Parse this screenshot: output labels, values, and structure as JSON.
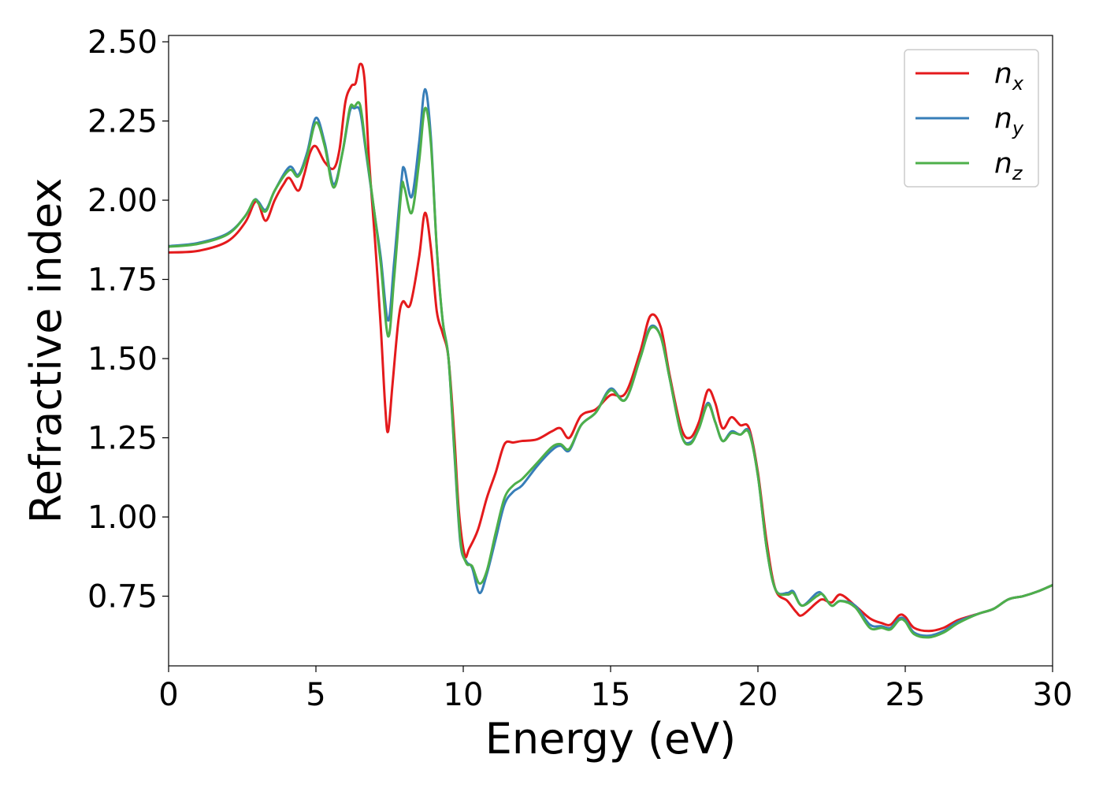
{
  "chart_data": {
    "type": "line",
    "xlabel": "Energy (eV)",
    "ylabel": "Refractive index",
    "xlim": [
      0,
      30
    ],
    "ylim": [
      0.53,
      2.52
    ],
    "xticks": [
      0,
      5,
      10,
      15,
      20,
      25,
      30
    ],
    "xtick_labels": [
      "0",
      "5",
      "10",
      "15",
      "20",
      "25",
      "30"
    ],
    "yticks": [
      0.75,
      1.0,
      1.25,
      1.5,
      1.75,
      2.0,
      2.25,
      2.5
    ],
    "ytick_labels": [
      "0.75",
      "1.00",
      "1.25",
      "1.50",
      "1.75",
      "2.00",
      "2.25",
      "2.50"
    ],
    "grid": false,
    "legend_position": "top-right",
    "series": [
      {
        "name": "n_x",
        "label_base": "n",
        "label_sub": "x",
        "color": "#e41a1c",
        "points": [
          [
            0,
            1.835
          ],
          [
            1,
            1.84
          ],
          [
            2,
            1.87
          ],
          [
            2.6,
            1.93
          ],
          [
            2.9,
            1.99
          ],
          [
            3.05,
            1.99
          ],
          [
            3.3,
            1.935
          ],
          [
            3.6,
            2.0
          ],
          [
            3.9,
            2.05
          ],
          [
            4.1,
            2.07
          ],
          [
            4.4,
            2.03
          ],
          [
            4.6,
            2.08
          ],
          [
            4.8,
            2.15
          ],
          [
            5.0,
            2.17
          ],
          [
            5.3,
            2.12
          ],
          [
            5.6,
            2.1
          ],
          [
            5.8,
            2.16
          ],
          [
            6.0,
            2.31
          ],
          [
            6.2,
            2.36
          ],
          [
            6.35,
            2.37
          ],
          [
            6.5,
            2.43
          ],
          [
            6.65,
            2.38
          ],
          [
            6.8,
            2.13
          ],
          [
            7.0,
            1.88
          ],
          [
            7.2,
            1.6
          ],
          [
            7.35,
            1.35
          ],
          [
            7.45,
            1.27
          ],
          [
            7.6,
            1.42
          ],
          [
            7.8,
            1.62
          ],
          [
            7.95,
            1.68
          ],
          [
            8.2,
            1.67
          ],
          [
            8.5,
            1.82
          ],
          [
            8.7,
            1.96
          ],
          [
            8.9,
            1.85
          ],
          [
            9.1,
            1.65
          ],
          [
            9.3,
            1.58
          ],
          [
            9.5,
            1.5
          ],
          [
            9.7,
            1.25
          ],
          [
            9.85,
            1.02
          ],
          [
            10.05,
            0.88
          ],
          [
            10.2,
            0.9
          ],
          [
            10.5,
            0.96
          ],
          [
            10.8,
            1.06
          ],
          [
            11.1,
            1.14
          ],
          [
            11.4,
            1.23
          ],
          [
            11.7,
            1.235
          ],
          [
            12.0,
            1.24
          ],
          [
            12.5,
            1.245
          ],
          [
            13.0,
            1.27
          ],
          [
            13.3,
            1.28
          ],
          [
            13.6,
            1.25
          ],
          [
            14.0,
            1.32
          ],
          [
            14.5,
            1.34
          ],
          [
            15.0,
            1.385
          ],
          [
            15.5,
            1.39
          ],
          [
            16.0,
            1.52
          ],
          [
            16.35,
            1.635
          ],
          [
            16.7,
            1.6
          ],
          [
            17.0,
            1.45
          ],
          [
            17.4,
            1.28
          ],
          [
            17.7,
            1.25
          ],
          [
            18.0,
            1.3
          ],
          [
            18.3,
            1.4
          ],
          [
            18.55,
            1.36
          ],
          [
            18.8,
            1.28
          ],
          [
            19.1,
            1.315
          ],
          [
            19.4,
            1.29
          ],
          [
            19.7,
            1.28
          ],
          [
            20.0,
            1.14
          ],
          [
            20.3,
            0.92
          ],
          [
            20.6,
            0.77
          ],
          [
            21.0,
            0.735
          ],
          [
            21.3,
            0.7
          ],
          [
            21.5,
            0.69
          ],
          [
            22.0,
            0.73
          ],
          [
            22.2,
            0.74
          ],
          [
            22.5,
            0.73
          ],
          [
            22.8,
            0.755
          ],
          [
            23.3,
            0.72
          ],
          [
            23.8,
            0.68
          ],
          [
            24.2,
            0.665
          ],
          [
            24.5,
            0.66
          ],
          [
            24.8,
            0.69
          ],
          [
            25.0,
            0.685
          ],
          [
            25.3,
            0.65
          ],
          [
            25.8,
            0.64
          ],
          [
            26.3,
            0.65
          ],
          [
            26.8,
            0.675
          ],
          [
            27.5,
            0.695
          ],
          [
            28.0,
            0.71
          ],
          [
            28.5,
            0.74
          ],
          [
            29.0,
            0.75
          ],
          [
            29.5,
            0.765
          ],
          [
            30.0,
            0.785
          ]
        ]
      },
      {
        "name": "n_y",
        "label_base": "n",
        "label_sub": "y",
        "color": "#377eb8",
        "points": [
          [
            0,
            1.855
          ],
          [
            1,
            1.865
          ],
          [
            2,
            1.895
          ],
          [
            2.6,
            1.95
          ],
          [
            2.9,
            2.0
          ],
          [
            3.05,
            1.995
          ],
          [
            3.3,
            1.97
          ],
          [
            3.6,
            2.03
          ],
          [
            4.1,
            2.105
          ],
          [
            4.4,
            2.08
          ],
          [
            4.7,
            2.15
          ],
          [
            5.0,
            2.26
          ],
          [
            5.3,
            2.18
          ],
          [
            5.6,
            2.05
          ],
          [
            5.9,
            2.15
          ],
          [
            6.15,
            2.28
          ],
          [
            6.3,
            2.29
          ],
          [
            6.5,
            2.28
          ],
          [
            6.7,
            2.15
          ],
          [
            7.0,
            1.95
          ],
          [
            7.2,
            1.82
          ],
          [
            7.45,
            1.62
          ],
          [
            7.65,
            1.8
          ],
          [
            7.9,
            2.06
          ],
          [
            8.0,
            2.1
          ],
          [
            8.25,
            2.01
          ],
          [
            8.5,
            2.18
          ],
          [
            8.7,
            2.35
          ],
          [
            8.9,
            2.2
          ],
          [
            9.1,
            1.85
          ],
          [
            9.3,
            1.62
          ],
          [
            9.5,
            1.5
          ],
          [
            9.7,
            1.2
          ],
          [
            9.9,
            0.92
          ],
          [
            10.1,
            0.86
          ],
          [
            10.3,
            0.84
          ],
          [
            10.55,
            0.76
          ],
          [
            10.8,
            0.82
          ],
          [
            11.1,
            0.93
          ],
          [
            11.4,
            1.04
          ],
          [
            11.7,
            1.08
          ],
          [
            12.0,
            1.1
          ],
          [
            12.5,
            1.16
          ],
          [
            13.0,
            1.21
          ],
          [
            13.3,
            1.225
          ],
          [
            13.6,
            1.21
          ],
          [
            14.0,
            1.29
          ],
          [
            14.5,
            1.33
          ],
          [
            15.0,
            1.405
          ],
          [
            15.5,
            1.37
          ],
          [
            16.0,
            1.5
          ],
          [
            16.35,
            1.6
          ],
          [
            16.7,
            1.57
          ],
          [
            17.0,
            1.44
          ],
          [
            17.4,
            1.26
          ],
          [
            17.7,
            1.235
          ],
          [
            18.0,
            1.28
          ],
          [
            18.3,
            1.36
          ],
          [
            18.55,
            1.3
          ],
          [
            18.8,
            1.24
          ],
          [
            19.1,
            1.27
          ],
          [
            19.4,
            1.26
          ],
          [
            19.7,
            1.27
          ],
          [
            20.0,
            1.13
          ],
          [
            20.3,
            0.9
          ],
          [
            20.6,
            0.77
          ],
          [
            21.0,
            0.76
          ],
          [
            21.2,
            0.765
          ],
          [
            21.5,
            0.72
          ],
          [
            22.0,
            0.76
          ],
          [
            22.2,
            0.755
          ],
          [
            22.5,
            0.72
          ],
          [
            22.8,
            0.735
          ],
          [
            23.3,
            0.72
          ],
          [
            23.8,
            0.66
          ],
          [
            24.2,
            0.655
          ],
          [
            24.5,
            0.65
          ],
          [
            24.8,
            0.68
          ],
          [
            25.0,
            0.675
          ],
          [
            25.3,
            0.635
          ],
          [
            25.8,
            0.625
          ],
          [
            26.3,
            0.64
          ],
          [
            26.8,
            0.67
          ],
          [
            27.5,
            0.695
          ],
          [
            28.0,
            0.71
          ],
          [
            28.5,
            0.74
          ],
          [
            29.0,
            0.75
          ],
          [
            29.5,
            0.765
          ],
          [
            30.0,
            0.785
          ]
        ]
      },
      {
        "name": "n_z",
        "label_base": "n",
        "label_sub": "z",
        "color": "#4daf4a",
        "points": [
          [
            0,
            1.853
          ],
          [
            1,
            1.862
          ],
          [
            2,
            1.892
          ],
          [
            2.6,
            1.95
          ],
          [
            2.9,
            2.0
          ],
          [
            3.05,
            1.99
          ],
          [
            3.3,
            1.965
          ],
          [
            3.6,
            2.03
          ],
          [
            4.1,
            2.095
          ],
          [
            4.4,
            2.075
          ],
          [
            4.7,
            2.14
          ],
          [
            5.0,
            2.245
          ],
          [
            5.3,
            2.17
          ],
          [
            5.6,
            2.04
          ],
          [
            5.9,
            2.15
          ],
          [
            6.15,
            2.29
          ],
          [
            6.3,
            2.295
          ],
          [
            6.5,
            2.3
          ],
          [
            6.7,
            2.16
          ],
          [
            7.0,
            1.95
          ],
          [
            7.2,
            1.8
          ],
          [
            7.45,
            1.57
          ],
          [
            7.65,
            1.75
          ],
          [
            7.9,
            2.03
          ],
          [
            8.0,
            2.04
          ],
          [
            8.25,
            1.96
          ],
          [
            8.5,
            2.12
          ],
          [
            8.7,
            2.29
          ],
          [
            8.9,
            2.18
          ],
          [
            9.1,
            1.85
          ],
          [
            9.3,
            1.62
          ],
          [
            9.5,
            1.5
          ],
          [
            9.7,
            1.21
          ],
          [
            9.9,
            0.93
          ],
          [
            10.1,
            0.855
          ],
          [
            10.3,
            0.845
          ],
          [
            10.55,
            0.79
          ],
          [
            10.8,
            0.83
          ],
          [
            11.1,
            0.95
          ],
          [
            11.4,
            1.06
          ],
          [
            11.7,
            1.1
          ],
          [
            12.0,
            1.12
          ],
          [
            12.5,
            1.17
          ],
          [
            13.0,
            1.22
          ],
          [
            13.3,
            1.23
          ],
          [
            13.6,
            1.215
          ],
          [
            14.0,
            1.29
          ],
          [
            14.5,
            1.33
          ],
          [
            15.0,
            1.4
          ],
          [
            15.5,
            1.37
          ],
          [
            16.0,
            1.5
          ],
          [
            16.35,
            1.595
          ],
          [
            16.7,
            1.57
          ],
          [
            17.0,
            1.44
          ],
          [
            17.4,
            1.26
          ],
          [
            17.7,
            1.23
          ],
          [
            18.0,
            1.28
          ],
          [
            18.3,
            1.355
          ],
          [
            18.55,
            1.3
          ],
          [
            18.8,
            1.24
          ],
          [
            19.1,
            1.265
          ],
          [
            19.4,
            1.26
          ],
          [
            19.7,
            1.265
          ],
          [
            20.0,
            1.13
          ],
          [
            20.3,
            0.9
          ],
          [
            20.6,
            0.77
          ],
          [
            21.0,
            0.755
          ],
          [
            21.2,
            0.76
          ],
          [
            21.5,
            0.72
          ],
          [
            22.0,
            0.75
          ],
          [
            22.2,
            0.755
          ],
          [
            22.5,
            0.72
          ],
          [
            22.8,
            0.735
          ],
          [
            23.3,
            0.715
          ],
          [
            23.8,
            0.65
          ],
          [
            24.2,
            0.65
          ],
          [
            24.5,
            0.645
          ],
          [
            24.8,
            0.675
          ],
          [
            25.0,
            0.67
          ],
          [
            25.3,
            0.63
          ],
          [
            25.8,
            0.62
          ],
          [
            26.3,
            0.635
          ],
          [
            26.8,
            0.665
          ],
          [
            27.5,
            0.695
          ],
          [
            28.0,
            0.71
          ],
          [
            28.5,
            0.74
          ],
          [
            29.0,
            0.75
          ],
          [
            29.5,
            0.765
          ],
          [
            30.0,
            0.785
          ]
        ]
      }
    ]
  }
}
